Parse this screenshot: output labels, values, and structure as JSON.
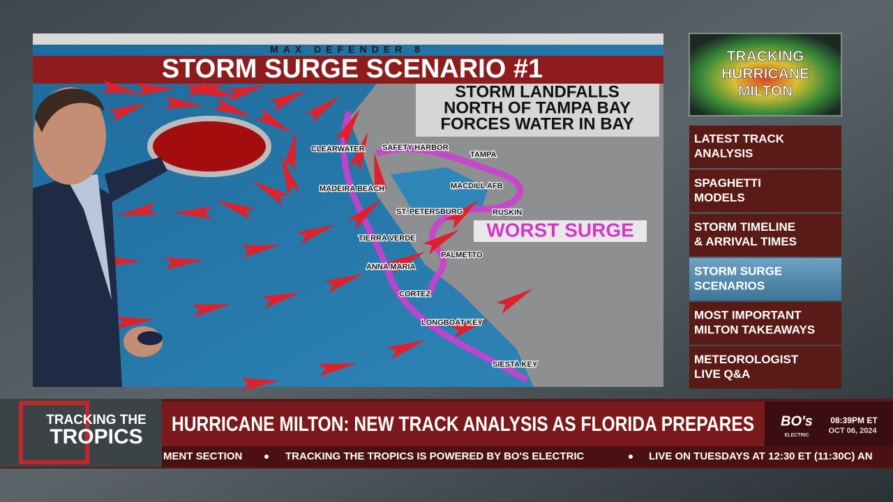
{
  "header": {
    "brand": "MAX DEFENDER 8",
    "title": "STORM SURGE SCENARIO #1"
  },
  "map": {
    "callout": [
      "STORM LANDFALLS",
      "NORTH OF TAMPA BAY",
      "FORCES WATER IN BAY"
    ],
    "highlight": "WORST SURGE",
    "places": [
      "CLEARWATER",
      "SAFETY HARBOR",
      "TAMPA",
      "MADEIRA BEACH",
      "MACDILL AFB",
      "ST. PETERSBURG",
      "RUSKIN",
      "TIERRA VERDE",
      "PALMETTO",
      "ANNA MARIA",
      "CORTEZ",
      "LONGBOAT KEY",
      "SIESTA KEY"
    ]
  },
  "sidebar": {
    "feature": [
      "TRACKING",
      "HURRICANE",
      "MILTON"
    ],
    "menu": [
      {
        "lines": [
          "LATEST TRACK",
          "ANALYSIS"
        ],
        "active": false
      },
      {
        "lines": [
          "SPAGHETTI",
          "MODELS"
        ],
        "active": false
      },
      {
        "lines": [
          "STORM TIMELINE",
          "& ARRIVAL TIMES"
        ],
        "active": false
      },
      {
        "lines": [
          "STORM SURGE",
          "SCENARIOS"
        ],
        "active": true
      },
      {
        "lines": [
          "MOST IMPORTANT",
          "MILTON TAKEAWAYS"
        ],
        "active": false
      },
      {
        "lines": [
          "METEOROLOGIST",
          "LIVE Q&A"
        ],
        "active": false
      }
    ]
  },
  "lower_third": {
    "logo": [
      "TRACKING THE",
      "TROPICS"
    ],
    "headline": "HURRICANE MILTON: NEW TRACK ANALYSIS AS FLORIDA PREPARES",
    "sponsor": "BO's",
    "sponsor_sub": "ELECTRIC",
    "time": "08:39PM ET",
    "date": "OCT 06, 2024",
    "ticker": [
      "MENT SECTION",
      "TRACKING THE TROPICS IS POWERED BY BO'S ELECTRIC",
      "LIVE ON TUESDAYS AT 12:30 ET (11:30C) AN"
    ]
  }
}
